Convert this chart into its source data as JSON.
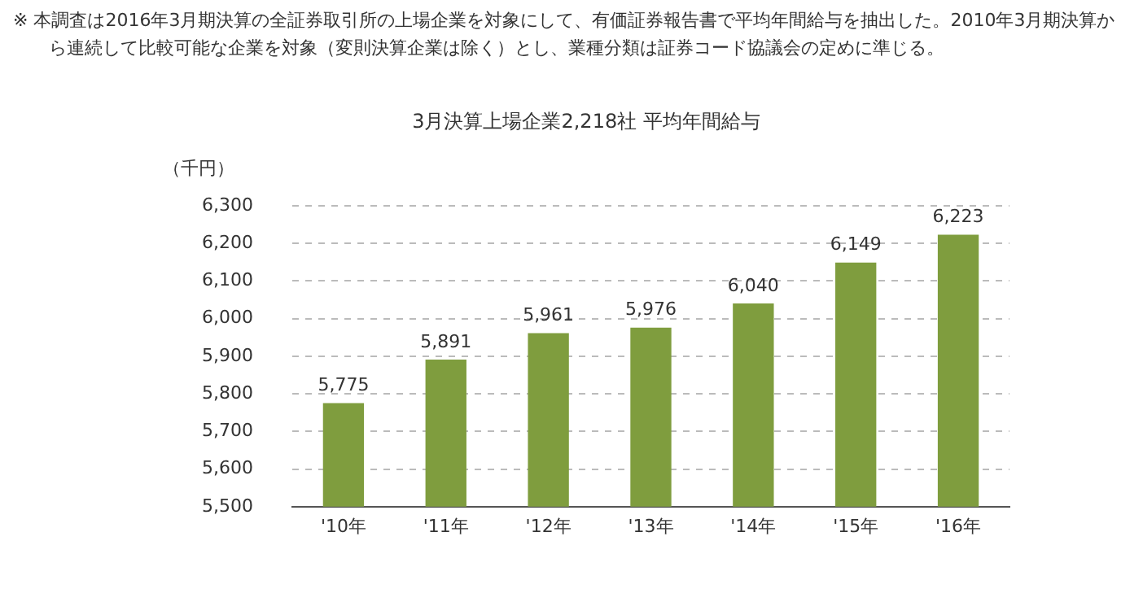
{
  "chart_data": {
    "type": "bar",
    "title": "3月決算上場企業2,218社 平均年間給与",
    "ylabel": "（千円）",
    "annotations": [
      "※ 本調査は2016年3月期決算の全証券取引所の上場企業を対象にして、有価証券報告書で平均年間給与を抽出した。2010年3月期決算から連続して比較可能な企業を対象（変則決算企業は除く）とし、業種分類は証券コード協議会の定めに準じる。"
    ],
    "categories": [
      "'10年",
      "'11年",
      "'12年",
      "'13年",
      "'14年",
      "'15年",
      "'16年"
    ],
    "values": [
      5775,
      5891,
      5961,
      5976,
      6040,
      6149,
      6223
    ],
    "color": "#7f9d3e",
    "ylim": [
      5500,
      6300
    ],
    "yticks": [
      {
        "value": 5500,
        "label": "5,500"
      },
      {
        "value": 5600,
        "label": "5,600"
      },
      {
        "value": 5700,
        "label": "5,700"
      },
      {
        "value": 5800,
        "label": "5,800"
      },
      {
        "value": 5900,
        "label": "5,900"
      },
      {
        "value": 6000,
        "label": "6,000"
      },
      {
        "value": 6100,
        "label": "6,100"
      },
      {
        "value": 6200,
        "label": "6,200"
      },
      {
        "value": 6300,
        "label": "6,300"
      }
    ],
    "value_labels": [
      "5,775",
      "5,891",
      "5,961",
      "5,976",
      "6,040",
      "6,149",
      "6,223"
    ],
    "grid": "y",
    "legend": false
  }
}
